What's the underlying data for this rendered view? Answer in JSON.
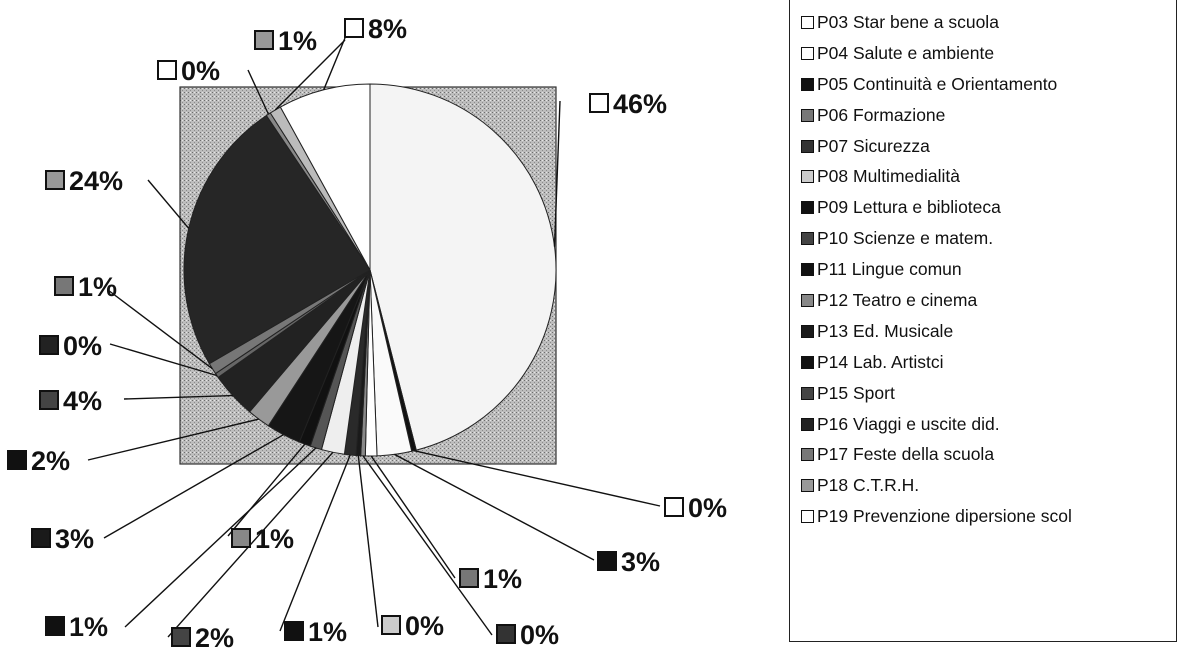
{
  "chart_data": {
    "type": "pie",
    "title": "",
    "legend_position": "right",
    "slices": [
      {
        "name": "P03 Star bene a scuola",
        "label": "46%",
        "value": 46,
        "color": "#f4f4f4",
        "swatch": "#ffffff"
      },
      {
        "name": "P04 Salute e ambiente",
        "label": "0%",
        "value": 0.4,
        "color": "#111111",
        "swatch": "#ffffff"
      },
      {
        "name": "P05 Continuità e Orientamento",
        "label": "3%",
        "value": 3,
        "color": "#fafafa",
        "swatch": "#111111"
      },
      {
        "name": "P06 Formazione",
        "label": "1%",
        "value": 1,
        "color": "#ffffff",
        "swatch": "#777777"
      },
      {
        "name": "P07 Sicurezza",
        "label": "0%",
        "value": 0.4,
        "color": "#888888",
        "swatch": "#333333"
      },
      {
        "name": "P08 Multimedialità",
        "label": "0%",
        "value": 0.4,
        "color": "#1a1a1a",
        "swatch": "#cccccc"
      },
      {
        "name": "P09 Lettura e biblioteca",
        "label": "1%",
        "value": 1,
        "color": "#2a2a2a",
        "swatch": "#111111"
      },
      {
        "name": "P10 Scienze e matem.",
        "label": "2%",
        "value": 2,
        "color": "#eeeeee",
        "swatch": "#444444"
      },
      {
        "name": "P11 Lingue comun",
        "label": "1%",
        "value": 1,
        "color": "#555555",
        "swatch": "#111111"
      },
      {
        "name": "P12 Teatro e cinema",
        "label": "1%",
        "value": 1,
        "color": "#111111",
        "swatch": "#888888"
      },
      {
        "name": "P13 Ed. Musicale",
        "label": "3%",
        "value": 3,
        "color": "#161616",
        "swatch": "#1a1a1a"
      },
      {
        "name": "P14 Lab. Artistci",
        "label": "2%",
        "value": 2,
        "color": "#999999",
        "swatch": "#111111"
      },
      {
        "name": "P15 Sport",
        "label": "4%",
        "value": 4,
        "color": "#222222",
        "swatch": "#444444"
      },
      {
        "name": "P16 Viaggi e uscite did.",
        "label": "0%",
        "value": 0.4,
        "color": "#666666",
        "swatch": "#222222"
      },
      {
        "name": "P17 Feste della scuola",
        "label": "1%",
        "value": 1,
        "color": "#777777",
        "swatch": "#777777"
      },
      {
        "name": "P18 C.T.R.H.",
        "label": "24%",
        "value": 24,
        "color": "#262626",
        "swatch": "#999999"
      },
      {
        "name": "P19 Prevenzione dipersione scol",
        "label": "0%",
        "value": 0.4,
        "color": "#888888",
        "swatch": "#ffffff"
      },
      {
        "name": "",
        "label": "1%",
        "value": 1,
        "color": "#bbbbbb",
        "swatch": "#999999"
      },
      {
        "name": "",
        "label": "8%",
        "value": 8,
        "color": "#ffffff",
        "swatch": "#ffffff"
      }
    ],
    "legend": [
      {
        "label": "P03 Star bene a scuola",
        "swatch": "#ffffff"
      },
      {
        "label": "P04 Salute e ambiente",
        "swatch": "#ffffff"
      },
      {
        "label": "P05 Continuità e Orientamento",
        "swatch": "#111111"
      },
      {
        "label": "P06 Formazione",
        "swatch": "#777777"
      },
      {
        "label": "P07 Sicurezza",
        "swatch": "#333333"
      },
      {
        "label": "P08 Multimedialità",
        "swatch": "#cccccc"
      },
      {
        "label": "P09 Lettura e biblioteca",
        "swatch": "#111111"
      },
      {
        "label": "P10 Scienze e matem.",
        "swatch": "#444444"
      },
      {
        "label": "P11 Lingue comun",
        "swatch": "#111111"
      },
      {
        "label": "P12 Teatro e cinema",
        "swatch": "#888888"
      },
      {
        "label": "P13 Ed. Musicale",
        "swatch": "#1a1a1a"
      },
      {
        "label": "P14 Lab. Artistci",
        "swatch": "#111111"
      },
      {
        "label": "P15 Sport",
        "swatch": "#444444"
      },
      {
        "label": "P16 Viaggi e uscite did.",
        "swatch": "#222222"
      },
      {
        "label": "P17 Feste della scuola",
        "swatch": "#777777"
      },
      {
        "label": "P18 C.T.R.H.",
        "swatch": "#999999"
      },
      {
        "label": "P19 Prevenzione dipersione scol",
        "swatch": "#ffffff"
      }
    ]
  }
}
